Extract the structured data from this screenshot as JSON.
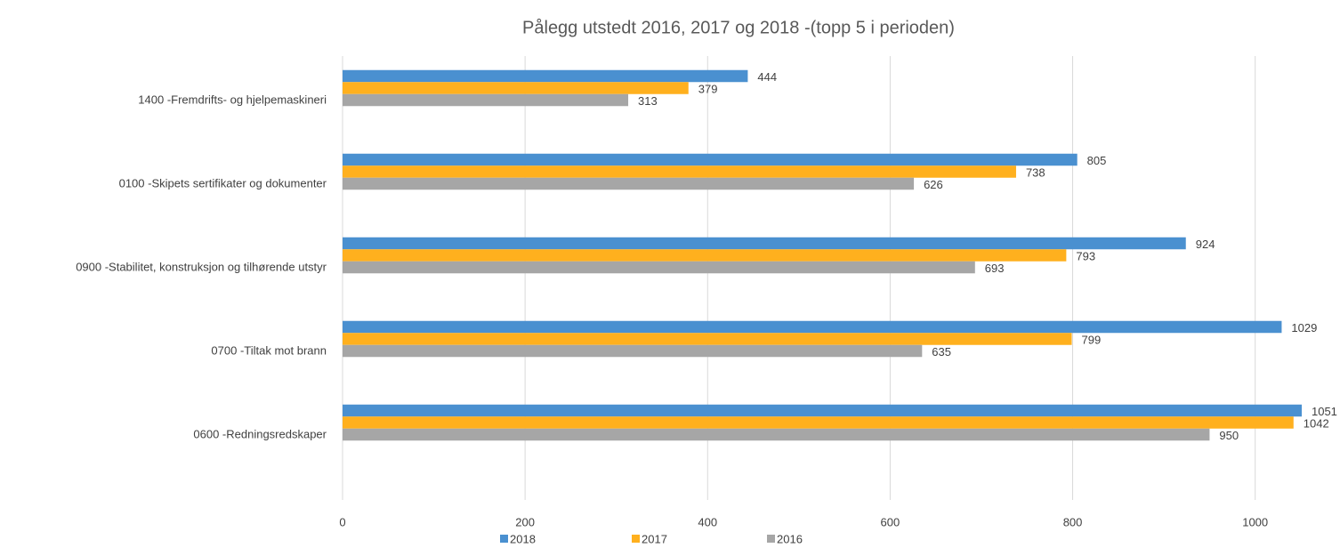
{
  "chart_data": {
    "type": "hbar",
    "title": "Pålegg utstedt 2016, 2017 og 2018 -(topp 5 i perioden)",
    "categories": [
      "1400 -Fremdrifts- og hjelpemaskineri",
      "0100 -Skipets sertifikater og dokumenter",
      "0900 -Stabilitet, konstruksjon og tilhørende utstyr",
      "0700 -Tiltak mot brann",
      "0600 -Redningsredskaper"
    ],
    "series": [
      {
        "name": "2018",
        "color": "#4a90d0",
        "values": [
          444,
          805,
          924,
          1029,
          1051
        ]
      },
      {
        "name": "2017",
        "color": "#ffb01e",
        "values": [
          379,
          738,
          793,
          799,
          1042
        ]
      },
      {
        "name": "2016",
        "color": "#a6a6a6",
        "values": [
          313,
          626,
          693,
          635,
          950
        ]
      }
    ],
    "xlim": [
      0,
      1090
    ],
    "xticks": [
      0,
      200,
      400,
      600,
      800,
      1000
    ],
    "grid": true,
    "legend": "bottom"
  }
}
